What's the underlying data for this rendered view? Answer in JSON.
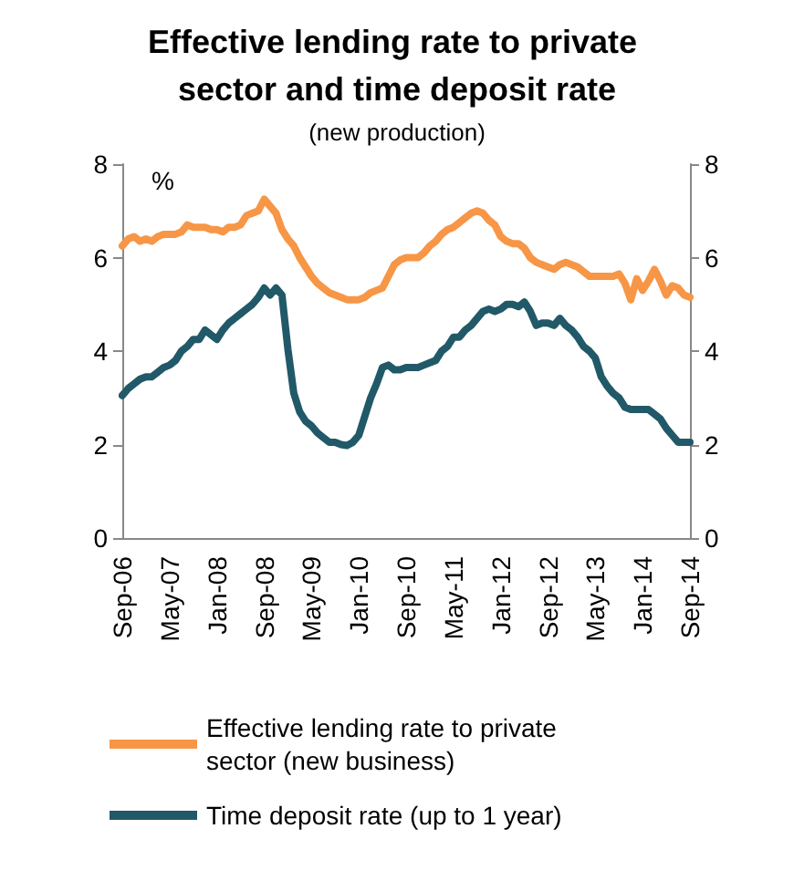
{
  "chart_data": {
    "type": "line",
    "title": "Effective lending rate to private sector and time deposit rate",
    "subtitle": "(new production)",
    "annotations": [
      "%"
    ],
    "categories": [
      "Sep-06",
      null,
      null,
      null,
      null,
      null,
      null,
      null,
      "May-07",
      null,
      null,
      null,
      null,
      null,
      null,
      null,
      "Jan-08",
      null,
      null,
      null,
      null,
      null,
      null,
      null,
      "Sep-08",
      null,
      null,
      null,
      null,
      null,
      null,
      null,
      "May-09",
      null,
      null,
      null,
      null,
      null,
      null,
      null,
      "Jan-10",
      null,
      null,
      null,
      null,
      null,
      null,
      null,
      "Sep-10",
      null,
      null,
      null,
      null,
      null,
      null,
      null,
      "May-11",
      null,
      null,
      null,
      null,
      null,
      null,
      null,
      "Jan-12",
      null,
      null,
      null,
      null,
      null,
      null,
      null,
      "Sep-12",
      null,
      null,
      null,
      null,
      null,
      null,
      null,
      "May-13",
      null,
      null,
      null,
      null,
      null,
      null,
      null,
      "Jan-14",
      null,
      null,
      null,
      null,
      null,
      null,
      null,
      "Sep-14"
    ],
    "series": [
      {
        "name": "Effective lending rate to private sector (new business)",
        "color": "#f79646",
        "values": [
          6.25,
          6.4,
          6.45,
          6.35,
          6.4,
          6.35,
          6.45,
          6.5,
          6.5,
          6.5,
          6.55,
          6.7,
          6.65,
          6.65,
          6.65,
          6.6,
          6.6,
          6.55,
          6.65,
          6.65,
          6.7,
          6.9,
          6.95,
          7.0,
          7.25,
          7.1,
          6.95,
          6.6,
          6.4,
          6.25,
          6.0,
          5.8,
          5.6,
          5.45,
          5.35,
          5.25,
          5.2,
          5.15,
          5.1,
          5.1,
          5.1,
          5.15,
          5.25,
          5.3,
          5.35,
          5.6,
          5.85,
          5.95,
          6.0,
          6.0,
          6.0,
          6.1,
          6.25,
          6.35,
          6.5,
          6.6,
          6.65,
          6.75,
          6.85,
          6.95,
          7.0,
          6.95,
          6.8,
          6.7,
          6.45,
          6.35,
          6.3,
          6.3,
          6.2,
          6.0,
          5.9,
          5.85,
          5.8,
          5.75,
          5.85,
          5.9,
          5.85,
          5.8,
          5.7,
          5.6,
          5.6,
          5.6,
          5.6,
          5.6,
          5.65,
          5.45,
          5.1,
          5.55,
          5.3,
          5.5,
          5.75,
          5.5,
          5.2,
          5.4,
          5.35,
          5.2,
          5.15
        ]
      },
      {
        "name": "Time deposit rate (up to 1 year)",
        "color": "#215968",
        "values": [
          3.05,
          3.2,
          3.3,
          3.4,
          3.45,
          3.45,
          3.55,
          3.65,
          3.7,
          3.8,
          4.0,
          4.1,
          4.25,
          4.25,
          4.45,
          4.35,
          4.25,
          4.45,
          4.6,
          4.7,
          4.8,
          4.9,
          5.0,
          5.15,
          5.35,
          5.2,
          5.35,
          5.2,
          4.05,
          3.1,
          2.7,
          2.5,
          2.4,
          2.25,
          2.15,
          2.05,
          2.05,
          2.0,
          1.98,
          2.05,
          2.2,
          2.6,
          3.0,
          3.3,
          3.65,
          3.7,
          3.6,
          3.6,
          3.65,
          3.65,
          3.65,
          3.7,
          3.75,
          3.8,
          4.0,
          4.1,
          4.3,
          4.3,
          4.45,
          4.55,
          4.7,
          4.85,
          4.9,
          4.85,
          4.9,
          5.0,
          5.0,
          4.95,
          5.05,
          4.85,
          4.55,
          4.6,
          4.6,
          4.55,
          4.7,
          4.55,
          4.45,
          4.3,
          4.1,
          4.0,
          3.85,
          3.45,
          3.25,
          3.1,
          3.0,
          2.8,
          2.75,
          2.75,
          2.75,
          2.75,
          2.65,
          2.55,
          2.35,
          2.2,
          2.05,
          2.05,
          2.05
        ]
      }
    ],
    "ylim": [
      0,
      8
    ],
    "yticks": [
      0,
      2,
      4,
      6,
      8
    ],
    "y2lim": [
      0,
      8
    ],
    "y2ticks": [
      0,
      2,
      4,
      6,
      8
    ],
    "grid": false,
    "legend": "bottom",
    "marker": "none",
    "line_style": "solid"
  }
}
